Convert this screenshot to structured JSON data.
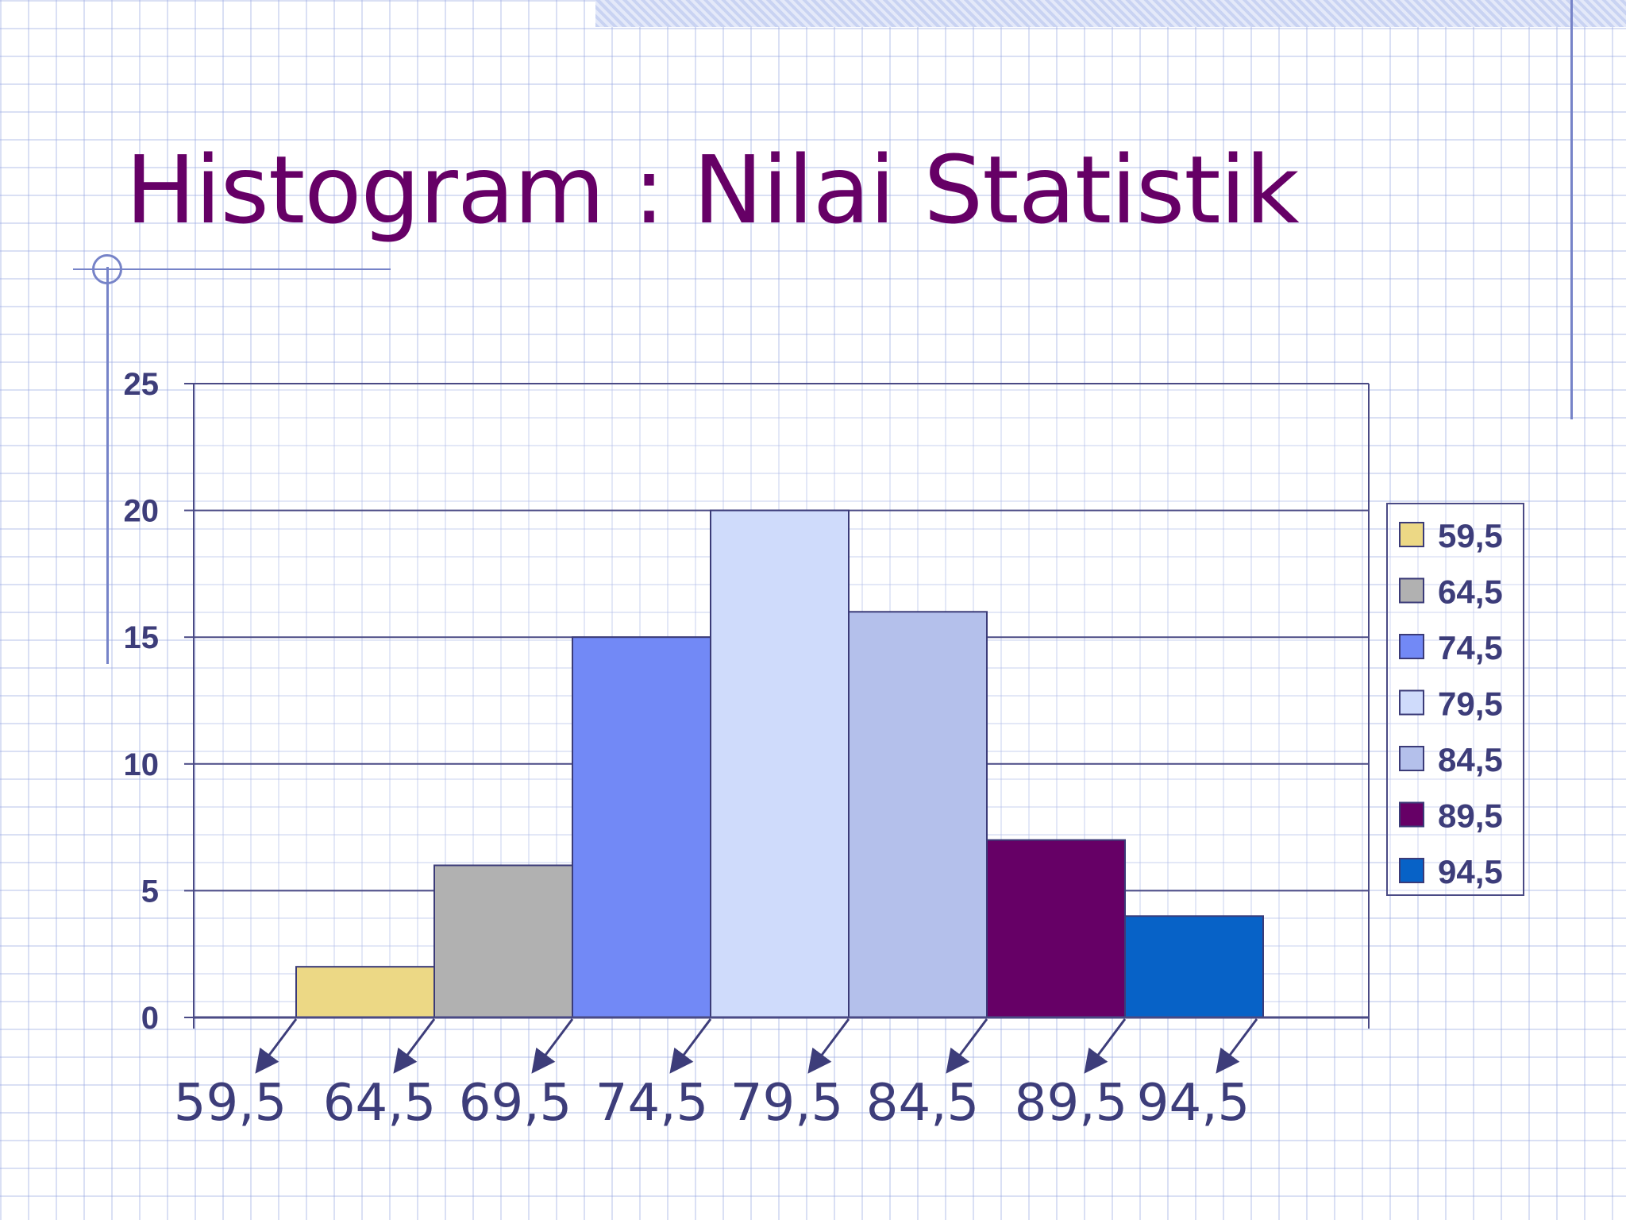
{
  "slide": {
    "title": "Histogram : Nilai Statistik"
  },
  "chart_data": {
    "type": "bar",
    "title": "",
    "xlabel": "",
    "ylabel": "",
    "ylim": [
      0,
      25
    ],
    "yticks": [
      0,
      5,
      10,
      15,
      20,
      25
    ],
    "grid": true,
    "legend_position": "right",
    "x_boundaries": [
      "59,5",
      "64,5",
      "69,5",
      "74,5",
      "79,5",
      "84,5",
      "89,5",
      "94,5"
    ],
    "series": [
      {
        "name": "59,5",
        "value": 2,
        "color": "#ecd885"
      },
      {
        "name": "64,5",
        "value": 6,
        "color": "#b1b1b1"
      },
      {
        "name": "74,5",
        "value": 15,
        "color": "#7289f6"
      },
      {
        "name": "79,5",
        "value": 20,
        "color": "#cfdbfb"
      },
      {
        "name": "84,5",
        "value": 16,
        "color": "#b4c0eb"
      },
      {
        "name": "89,5",
        "value": 7,
        "color": "#660066"
      },
      {
        "name": "94,5",
        "value": 4,
        "color": "#0762c7"
      }
    ]
  }
}
